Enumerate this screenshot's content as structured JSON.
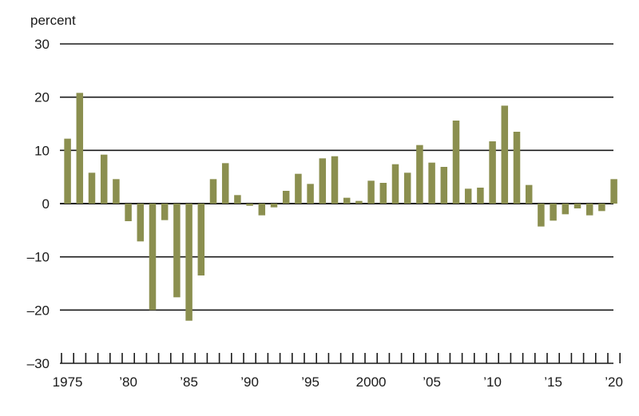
{
  "chart_data": {
    "type": "bar",
    "ylabel": "percent",
    "ylim": [
      -30,
      30
    ],
    "yticks": [
      30,
      20,
      10,
      0,
      -10,
      -20,
      -30
    ],
    "ytick_labels": [
      "30",
      "20",
      "10",
      "0",
      "–10",
      "–20",
      "–30"
    ],
    "categories": [
      1975,
      1976,
      1977,
      1978,
      1979,
      1980,
      1981,
      1982,
      1983,
      1984,
      1985,
      1986,
      1987,
      1988,
      1989,
      1990,
      1991,
      1992,
      1993,
      1994,
      1995,
      1996,
      1997,
      1998,
      1999,
      2000,
      2001,
      2002,
      2003,
      2004,
      2005,
      2006,
      2007,
      2008,
      2009,
      2010,
      2011,
      2012,
      2013,
      2014,
      2015,
      2016,
      2017,
      2018,
      2019,
      2020
    ],
    "values": [
      12.2,
      20.8,
      5.8,
      9.2,
      4.6,
      -3.3,
      -7.1,
      -20.0,
      -3.1,
      -17.6,
      -22.0,
      -13.5,
      4.6,
      7.6,
      1.6,
      -0.4,
      -2.2,
      -0.7,
      2.4,
      5.6,
      3.7,
      8.5,
      8.9,
      1.1,
      0.5,
      4.3,
      3.9,
      7.4,
      5.8,
      11.0,
      7.7,
      6.9,
      15.6,
      2.8,
      3.0,
      11.7,
      18.4,
      13.5,
      3.5,
      -4.3,
      -3.2,
      -2.0,
      -0.9,
      -2.2,
      -1.4,
      4.6
    ],
    "xtick_labels": [
      {
        "year": 1975,
        "label": "1975"
      },
      {
        "year": 1980,
        "label": "’80"
      },
      {
        "year": 1985,
        "label": "’85"
      },
      {
        "year": 1990,
        "label": "’90"
      },
      {
        "year": 1995,
        "label": "’95"
      },
      {
        "year": 2000,
        "label": "2000"
      },
      {
        "year": 2005,
        "label": "’05"
      },
      {
        "year": 2010,
        "label": "’10"
      },
      {
        "year": 2015,
        "label": "’15"
      },
      {
        "year": 2020,
        "label": "’20"
      }
    ],
    "grid": true,
    "bar_color": "#8b8f4f",
    "grid_color": "#1a1a1a"
  }
}
